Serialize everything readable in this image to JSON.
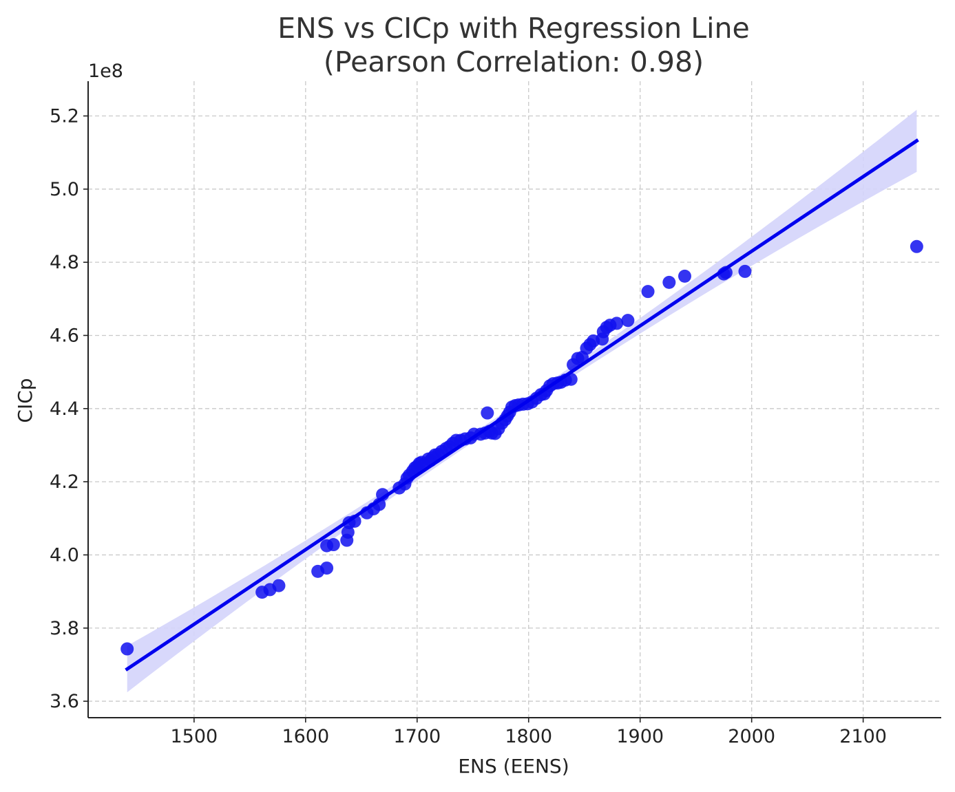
{
  "chart_data": {
    "type": "scatter",
    "title_line1": "ENS vs CICp with Regression Line",
    "title_line2": "(Pearson Correlation: 0.98)",
    "xlabel": "ENS (EENS)",
    "ylabel": "CICp",
    "y_offset_text": "1e8",
    "xlim": [
      1405,
      2170
    ],
    "ylim": [
      3.555,
      5.295
    ],
    "x_ticks": [
      1500,
      1600,
      1700,
      1800,
      1900,
      2000,
      2100
    ],
    "x_tick_labels": [
      "1500",
      "1600",
      "1700",
      "1800",
      "1900",
      "2000",
      "2100"
    ],
    "y_ticks": [
      3.6,
      3.8,
      4.0,
      4.2,
      4.4,
      4.6,
      4.8,
      5.0,
      5.2
    ],
    "y_tick_labels": [
      "3.6",
      "3.8",
      "4.0",
      "4.2",
      "4.4",
      "4.6",
      "4.8",
      "5.0",
      "5.2"
    ],
    "grid": true,
    "colors": {
      "points": "#1010ee",
      "regression_line": "#0000ee",
      "confidence_band": "#d4d4fb"
    },
    "regression": {
      "x": [
        1440,
        2148
      ],
      "y": [
        3.688,
        5.132
      ],
      "ci_lower": [
        3.625,
        5.045
      ],
      "ci_upper": [
        3.752,
        5.215
      ]
    },
    "series": [
      {
        "x": [
          1440,
          1561,
          1568,
          1576,
          1611,
          1619,
          1619,
          1625,
          1637,
          1638,
          1639,
          1644,
          1655,
          1661,
          1666,
          1669,
          1684,
          1689,
          1691,
          1693,
          1696,
          1698,
          1700,
          1702,
          1704,
          1706,
          1710,
          1712,
          1714,
          1716,
          1719,
          1722,
          1726,
          1729,
          1732,
          1735,
          1739,
          1743,
          1748,
          1751,
          1757,
          1761,
          1763,
          1765,
          1767,
          1770,
          1773,
          1776,
          1779,
          1781,
          1783,
          1785,
          1788,
          1791,
          1795,
          1799,
          1803,
          1807,
          1811,
          1814,
          1816,
          1819,
          1822,
          1826,
          1829,
          1833,
          1838,
          1840,
          1844,
          1848,
          1852,
          1855,
          1858,
          1866,
          1867,
          1870,
          1873,
          1879,
          1889,
          1907,
          1926,
          1940,
          1975,
          1977,
          1994,
          2148
        ],
        "y": [
          3.743,
          3.898,
          3.905,
          3.916,
          3.955,
          3.964,
          4.025,
          4.028,
          4.04,
          4.062,
          4.088,
          4.092,
          4.115,
          4.126,
          4.138,
          4.165,
          4.183,
          4.194,
          4.21,
          4.218,
          4.229,
          4.238,
          4.242,
          4.25,
          4.253,
          4.247,
          4.262,
          4.258,
          4.266,
          4.273,
          4.275,
          4.283,
          4.291,
          4.296,
          4.305,
          4.313,
          4.313,
          4.317,
          4.32,
          4.33,
          4.33,
          4.333,
          4.388,
          4.338,
          4.333,
          4.332,
          4.345,
          4.36,
          4.37,
          4.38,
          4.39,
          4.404,
          4.408,
          4.41,
          4.412,
          4.413,
          4.418,
          4.428,
          4.438,
          4.44,
          4.449,
          4.462,
          4.468,
          4.47,
          4.472,
          4.478,
          4.48,
          4.52,
          4.537,
          4.54,
          4.565,
          4.575,
          4.585,
          4.59,
          4.61,
          4.622,
          4.628,
          4.633,
          4.641,
          4.72,
          4.745,
          4.762,
          4.768,
          4.772,
          4.775,
          4.843
        ]
      }
    ]
  }
}
